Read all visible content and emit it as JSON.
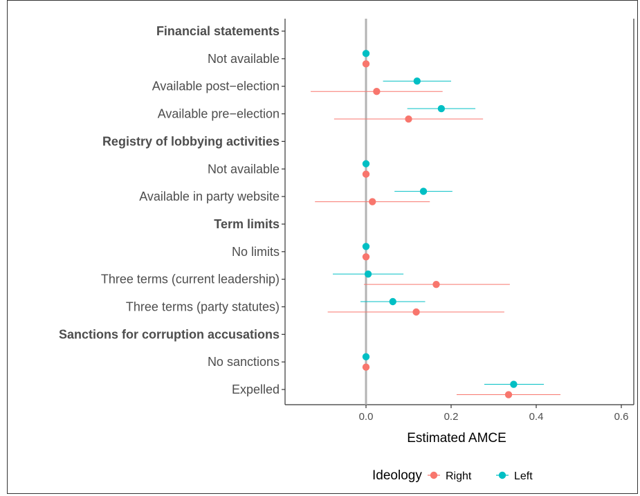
{
  "chart_data": {
    "type": "scatter",
    "xlabel": "Estimated AMCE",
    "ylabel": "",
    "xlim": [
      -0.19,
      0.62
    ],
    "xticks": [
      "0.0",
      "0.2",
      "0.4",
      "0.6"
    ],
    "xtick_values": [
      0.0,
      0.2,
      0.4,
      0.6
    ],
    "grid": false,
    "reference_line_x": 0,
    "legend_placement": "bottom",
    "legend_title": "Ideology",
    "categories": [
      {
        "label": "Financial statements",
        "heading": true
      },
      {
        "label": "Not available",
        "heading": false
      },
      {
        "label": "Available post−election",
        "heading": false
      },
      {
        "label": "Available pre−election",
        "heading": false
      },
      {
        "label": "Registry of lobbying activities",
        "heading": true
      },
      {
        "label": "Not available",
        "heading": false
      },
      {
        "label": "Available in party website",
        "heading": false
      },
      {
        "label": "Term limits",
        "heading": true
      },
      {
        "label": "No limits",
        "heading": false
      },
      {
        "label": "Three terms (current leadership)",
        "heading": false
      },
      {
        "label": "Three terms (party statutes)",
        "heading": false
      },
      {
        "label": "Sanctions for corruption accusations",
        "heading": true
      },
      {
        "label": "No sanctions",
        "heading": false
      },
      {
        "label": "Expelled",
        "heading": false
      }
    ],
    "series": [
      {
        "name": "Right",
        "color": "#F8766D",
        "points": [
          {
            "row": 1,
            "est": 0.0,
            "lo": 0.0,
            "hi": 0.0
          },
          {
            "row": 2,
            "est": 0.025,
            "lo": -0.13,
            "hi": 0.18
          },
          {
            "row": 3,
            "est": 0.1,
            "lo": -0.075,
            "hi": 0.275
          },
          {
            "row": 5,
            "est": 0.0,
            "lo": 0.0,
            "hi": 0.0
          },
          {
            "row": 6,
            "est": 0.015,
            "lo": -0.12,
            "hi": 0.15
          },
          {
            "row": 8,
            "est": 0.0,
            "lo": 0.0,
            "hi": 0.0
          },
          {
            "row": 9,
            "est": 0.165,
            "lo": -0.005,
            "hi": 0.338
          },
          {
            "row": 10,
            "est": 0.118,
            "lo": -0.09,
            "hi": 0.325
          },
          {
            "row": 12,
            "est": 0.0,
            "lo": 0.0,
            "hi": 0.0
          },
          {
            "row": 13,
            "est": 0.335,
            "lo": 0.213,
            "hi": 0.457
          }
        ]
      },
      {
        "name": "Left",
        "color": "#00BFC4",
        "points": [
          {
            "row": 1,
            "est": 0.0,
            "lo": 0.0,
            "hi": 0.0
          },
          {
            "row": 2,
            "est": 0.12,
            "lo": 0.04,
            "hi": 0.2
          },
          {
            "row": 3,
            "est": 0.177,
            "lo": 0.097,
            "hi": 0.257
          },
          {
            "row": 5,
            "est": 0.0,
            "lo": 0.0,
            "hi": 0.0
          },
          {
            "row": 6,
            "est": 0.135,
            "lo": 0.067,
            "hi": 0.203
          },
          {
            "row": 8,
            "est": 0.0,
            "lo": 0.0,
            "hi": 0.0
          },
          {
            "row": 9,
            "est": 0.005,
            "lo": -0.078,
            "hi": 0.088
          },
          {
            "row": 10,
            "est": 0.063,
            "lo": -0.013,
            "hi": 0.139
          },
          {
            "row": 12,
            "est": 0.0,
            "lo": 0.0,
            "hi": 0.0
          },
          {
            "row": 13,
            "est": 0.347,
            "lo": 0.278,
            "hi": 0.418
          }
        ]
      }
    ]
  }
}
